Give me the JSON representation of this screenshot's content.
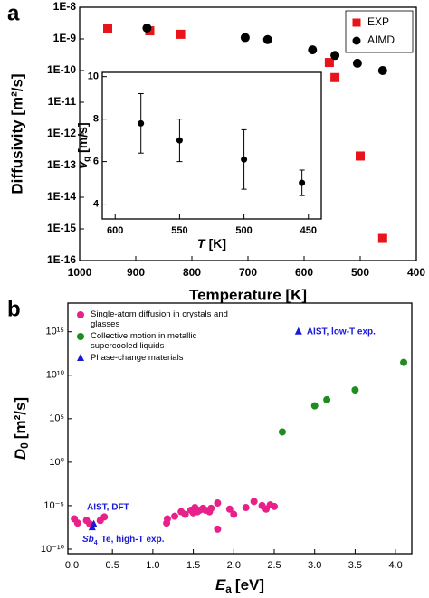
{
  "chart_data": [
    {
      "type": "scatter",
      "panel_label": "a",
      "x_label": "Temperature [K]",
      "y_label": "Diffusivity [m²/s]",
      "xlim": [
        1000,
        400
      ],
      "xticks": [
        1000,
        900,
        800,
        700,
        600,
        500,
        400
      ],
      "log_y": true,
      "ylim": [
        1e-16,
        1e-08
      ],
      "yticks": [
        {
          "value": 1e-16,
          "label": "1E-16"
        },
        {
          "value": 1e-15,
          "label": "1E-15"
        },
        {
          "value": 1e-14,
          "label": "1E-14"
        },
        {
          "value": 1e-13,
          "label": "1E-13"
        },
        {
          "value": 1e-12,
          "label": "1E-12"
        },
        {
          "value": 1e-11,
          "label": "1E-11"
        },
        {
          "value": 1e-10,
          "label": "1E-10"
        },
        {
          "value": 1e-09,
          "label": "1E-9"
        },
        {
          "value": 1e-08,
          "label": "1E-8"
        }
      ],
      "legend": "top-right",
      "series": [
        {
          "name": "EXP",
          "color": "#e8141a",
          "marker": "square",
          "x": [
            950,
            875,
            820,
            555,
            545,
            500,
            460
          ],
          "values": [
            2.2e-09,
            1.8e-09,
            1.4e-09,
            1.8e-10,
            6e-11,
            2e-13,
            5e-16
          ]
        },
        {
          "name": "AIMD",
          "color": "#000000",
          "marker": "circle",
          "x": [
            880,
            705,
            665,
            585,
            545,
            505,
            460
          ],
          "values": [
            2.2e-09,
            1.1e-09,
            9.5e-10,
            4.5e-10,
            3e-10,
            1.7e-10,
            1e-10
          ]
        }
      ]
    },
    {
      "type": "errorbar",
      "x_label": {
        "symbol": "T",
        "unit": "[K]"
      },
      "y_label": {
        "symbol": "v",
        "subscript": "g",
        "unit": "[m/s]"
      },
      "xlim": [
        610,
        440
      ],
      "xticks": [
        600,
        550,
        500,
        450
      ],
      "ylim": [
        3.3,
        10.2
      ],
      "yticks": [
        4,
        6,
        8,
        10
      ],
      "series": [
        {
          "color": "#000000",
          "marker": "circle",
          "x": [
            580,
            550,
            500,
            455
          ],
          "values": [
            7.8,
            7.0,
            6.1,
            5.0
          ],
          "errors": [
            1.4,
            1.0,
            1.4,
            0.6
          ]
        }
      ]
    },
    {
      "type": "scatter",
      "panel_label": "b",
      "x_label": {
        "symbol": "E",
        "subscript": "a",
        "unit": "[eV]"
      },
      "y_label": {
        "symbol": "D",
        "subscript": "0",
        "unit": "[m²/s]"
      },
      "xlim": [
        -0.05,
        4.2
      ],
      "xticks": [
        {
          "value": 0,
          "label": "0.0"
        },
        0.5,
        {
          "value": 1,
          "label": "1.0"
        },
        1.5,
        {
          "value": 2,
          "label": "2.0"
        },
        2.5,
        {
          "value": 3,
          "label": "3.0"
        },
        3.5,
        {
          "value": 4,
          "label": "4.0"
        }
      ],
      "log_y": true,
      "ylim": [
        3e-11,
        2e+18
      ],
      "yticks": [
        {
          "value": 1e-10,
          "label": "10⁻¹⁰"
        },
        {
          "value": 1e-05,
          "label": "10⁻⁵"
        },
        {
          "value": 1,
          "label": "10⁰"
        },
        {
          "value": 100000.0,
          "label": "10⁵"
        },
        {
          "value": 10000000000.0,
          "label": "10¹⁰"
        },
        {
          "value": 1000000000000000.0,
          "label": "10¹⁵"
        }
      ],
      "legend": "top-left",
      "series": [
        {
          "name": "Single-atom diffusion in crystals and glasses",
          "color": "#e8218a",
          "marker": "circle",
          "x": [
            0.03,
            0.07,
            0.18,
            0.22,
            0.35,
            0.4,
            1.17,
            1.18,
            1.27,
            1.35,
            1.4,
            1.47,
            1.5,
            1.52,
            1.55,
            1.58,
            1.62,
            1.65,
            1.7,
            1.72,
            1.8,
            1.8,
            1.95,
            2.0,
            2.15,
            2.25,
            2.35,
            2.4,
            2.45,
            2.5
          ],
          "values": [
            3e-07,
            1e-07,
            2e-07,
            8e-08,
            2e-07,
            5e-07,
            1e-07,
            3e-07,
            6e-07,
            2e-06,
            1e-06,
            3e-06,
            1.5e-06,
            6e-06,
            2e-06,
            3e-06,
            5e-06,
            3e-06,
            2e-06,
            5e-06,
            2e-05,
            2e-08,
            4e-06,
            1e-06,
            6e-06,
            3e-05,
            1e-05,
            4e-06,
            1.2e-05,
            8e-06
          ]
        },
        {
          "name": "Collective motion in metallic supercooled liquids",
          "color": "#1f8c1f",
          "marker": "circle",
          "x": [
            2.6,
            3.0,
            3.15,
            3.5,
            4.1
          ],
          "values": [
            3000,
            3000000,
            15000000,
            200000000,
            300000000000
          ]
        },
        {
          "name": "Phase-change materials",
          "color": "#1a1ad6",
          "marker": "triangle",
          "x": [
            0.25,
            0.27,
            2.8
          ],
          "values": [
            3e-08,
            7e-08,
            1000000000000000.0
          ]
        }
      ],
      "annotations": [
        {
          "text": "AIST, low-T exp."
        },
        {
          "text": "AIST, DFT"
        },
        {
          "symbol": "Sb",
          "subscript": "4",
          "unit": "Te, high-T exp."
        }
      ]
    }
  ]
}
